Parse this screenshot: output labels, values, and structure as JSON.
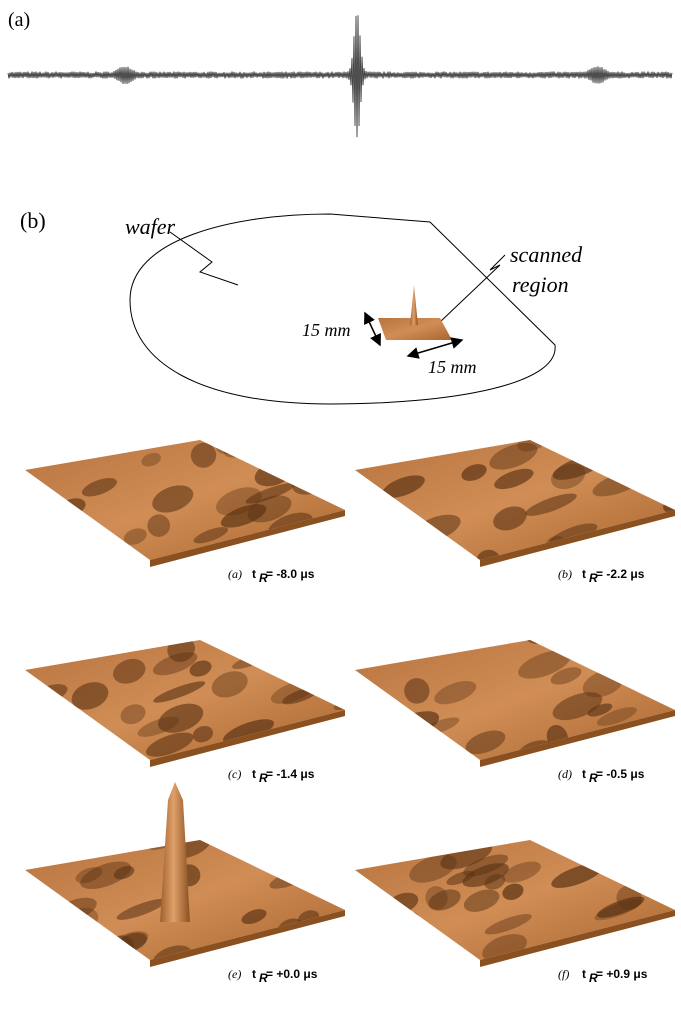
{
  "figure_a": {
    "label": "(a)"
  },
  "figure_b": {
    "label": "(b)",
    "wafer": "wafer",
    "scanned_line1": "scanned",
    "scanned_line2": "region",
    "dim1": "15 mm",
    "dim2": "15 mm"
  },
  "panels": [
    {
      "label": "(a)",
      "symbol": "t",
      "subscript": "R",
      "value": "=  -8.0 μs"
    },
    {
      "label": "(b)",
      "symbol": "t",
      "subscript": "R",
      "value": "=  -2.2 μs"
    },
    {
      "label": "(c)",
      "symbol": "t",
      "subscript": "R",
      "value": "=  -1.4 μs"
    },
    {
      "label": "(d)",
      "symbol": "t",
      "subscript": "R",
      "value": "=  -0.5 μs"
    },
    {
      "label": "(e)",
      "symbol": "t",
      "subscript": "R",
      "value": "=  +0.0 μs"
    },
    {
      "label": "(f)",
      "symbol": "t",
      "subscript": "R",
      "value": "=  +0.9 μs"
    }
  ]
}
